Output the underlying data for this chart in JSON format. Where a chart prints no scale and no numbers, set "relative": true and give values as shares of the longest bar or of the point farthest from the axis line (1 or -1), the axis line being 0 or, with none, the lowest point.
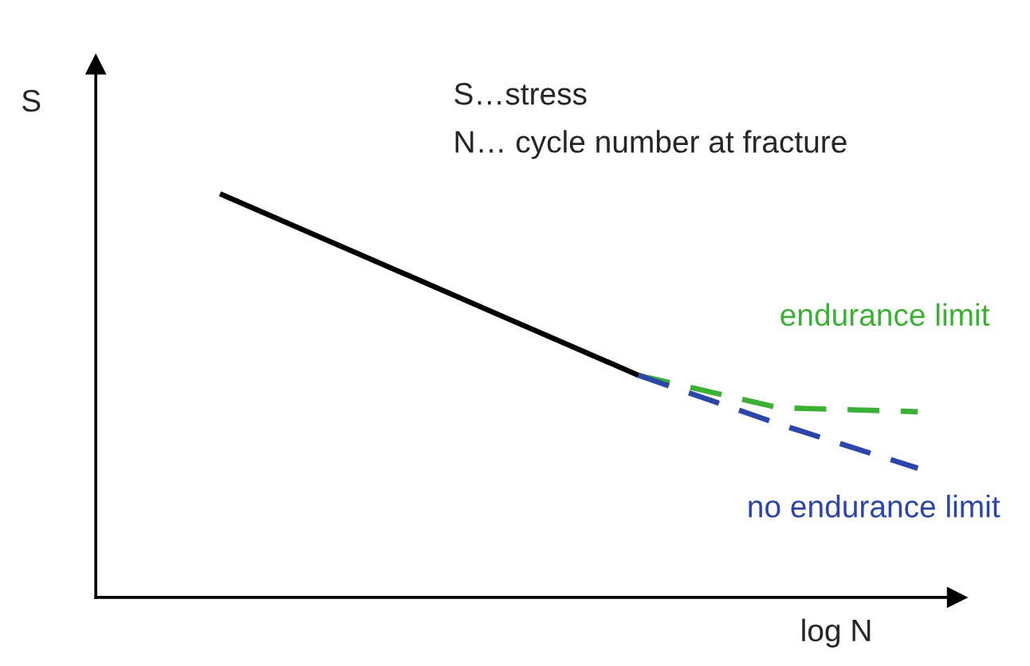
{
  "chart_data": {
    "type": "line",
    "relative": true,
    "xlabel": "log N",
    "ylabel": "S",
    "annotations": [
      "S…stress",
      "N… cycle number at fracture"
    ],
    "categories": [
      null,
      null,
      null,
      null,
      null,
      null
    ],
    "legend": false,
    "marker": "none",
    "series": [
      {
        "color": "#000000",
        "line_style": "solid",
        "values": [
          1,
          0.85,
          0.7,
          0.55,
          null,
          null
        ]
      },
      {
        "name": "endurance limit",
        "color": "#3cb034",
        "line_style": "dashed",
        "values": [
          null,
          null,
          null,
          0.55,
          0.47,
          0.46
        ]
      },
      {
        "name": "no endurance limit",
        "color": "#2b45a8",
        "line_style": "dashed",
        "values": [
          null,
          null,
          null,
          0.55,
          0.43,
          0.32
        ]
      }
    ]
  }
}
